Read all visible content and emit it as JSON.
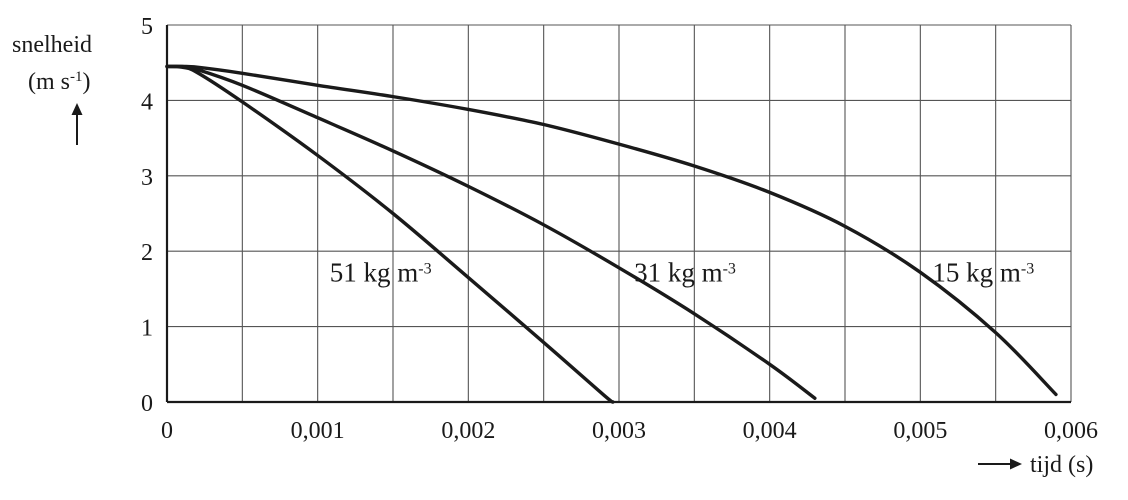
{
  "chart_data": {
    "type": "line",
    "ylabel_line1": "snelheid",
    "ylabel_unit_base": "(m s",
    "ylabel_unit_exp": "-1",
    "ylabel_unit_close": ")",
    "xlabel": "tijd (s)",
    "xlim": [
      0,
      0.006
    ],
    "ylim": [
      0,
      5
    ],
    "grid": true,
    "x_ticks": [
      {
        "value": 0,
        "label": "0"
      },
      {
        "value": 0.001,
        "label": "0,001"
      },
      {
        "value": 0.002,
        "label": "0,002"
      },
      {
        "value": 0.003,
        "label": "0,003"
      },
      {
        "value": 0.004,
        "label": "0,004"
      },
      {
        "value": 0.005,
        "label": "0,005"
      },
      {
        "value": 0.006,
        "label": "0,006"
      }
    ],
    "y_ticks": [
      {
        "value": 0,
        "label": "0"
      },
      {
        "value": 1,
        "label": "1"
      },
      {
        "value": 2,
        "label": "2"
      },
      {
        "value": 3,
        "label": "3"
      },
      {
        "value": 4,
        "label": "4"
      },
      {
        "value": 5,
        "label": "5"
      }
    ],
    "series": [
      {
        "label_base": "51 kg m",
        "label_exp": "-3",
        "label_at": [
          0.00108,
          1.6
        ],
        "x": [
          0,
          0.0001,
          0.0002,
          0.0005,
          0.001,
          0.0015,
          0.002,
          0.0025,
          0.0029,
          0.00296
        ],
        "y": [
          4.45,
          4.44,
          4.37,
          3.98,
          3.27,
          2.5,
          1.65,
          0.79,
          0.09,
          0
        ]
      },
      {
        "label_base": "31 kg m",
        "label_exp": "-3",
        "label_at": [
          0.0031,
          1.6
        ],
        "x": [
          0,
          0.0001,
          0.0002,
          0.0005,
          0.001,
          0.0015,
          0.002,
          0.0025,
          0.003,
          0.0035,
          0.004,
          0.0043
        ],
        "y": [
          4.45,
          4.45,
          4.41,
          4.2,
          3.77,
          3.33,
          2.86,
          2.35,
          1.78,
          1.17,
          0.5,
          0.05
        ]
      },
      {
        "label_base": "15 kg m",
        "label_exp": "-3",
        "label_at": [
          0.00508,
          1.6
        ],
        "x": [
          0,
          0.0001,
          0.0002,
          0.0005,
          0.001,
          0.0015,
          0.002,
          0.0025,
          0.003,
          0.0035,
          0.004,
          0.0045,
          0.005,
          0.0055,
          0.0059
        ],
        "y": [
          4.45,
          4.45,
          4.44,
          4.36,
          4.2,
          4.05,
          3.88,
          3.68,
          3.42,
          3.13,
          2.78,
          2.33,
          1.72,
          0.92,
          0.1
        ]
      }
    ]
  }
}
